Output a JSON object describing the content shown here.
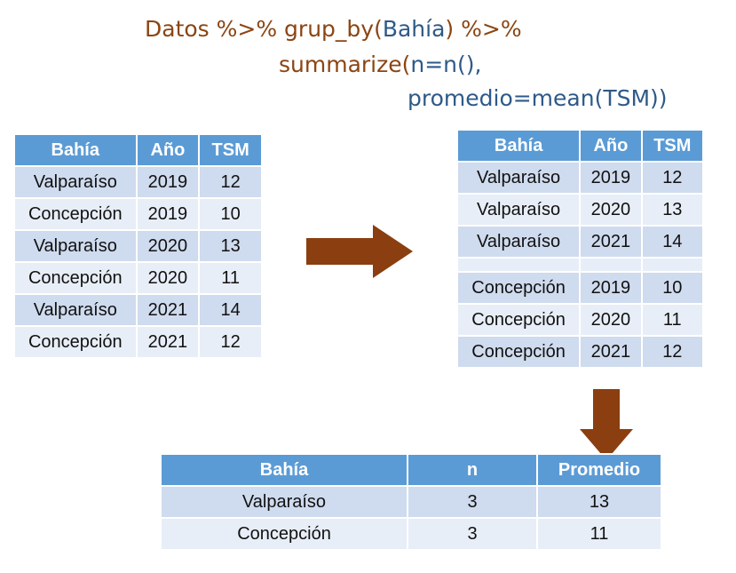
{
  "code": {
    "l1_a": "Datos %>% grup_by(",
    "l1_b": "Bahía",
    "l1_c": ") %>%",
    "l2_a": "summarize(",
    "l2_b": "n=n(),",
    "l3_a": "promedio=mean(TSM))"
  },
  "input_table": {
    "headers": [
      "Bahía",
      "Año",
      "TSM"
    ],
    "rows": [
      [
        "Valparaíso",
        "2019",
        "12"
      ],
      [
        "Concepción",
        "2019",
        "10"
      ],
      [
        "Valparaíso",
        "2020",
        "13"
      ],
      [
        "Concepción",
        "2020",
        "11"
      ],
      [
        "Valparaíso",
        "2021",
        "14"
      ],
      [
        "Concepción",
        "2021",
        "12"
      ]
    ]
  },
  "grouped_table": {
    "headers": [
      "Bahía",
      "Año",
      "TSM"
    ],
    "group1": [
      [
        "Valparaíso",
        "2019",
        "12"
      ],
      [
        "Valparaíso",
        "2020",
        "13"
      ],
      [
        "Valparaíso",
        "2021",
        "14"
      ]
    ],
    "group2": [
      [
        "Concepción",
        "2019",
        "10"
      ],
      [
        "Concepción",
        "2020",
        "11"
      ],
      [
        "Concepción",
        "2021",
        "12"
      ]
    ]
  },
  "summary_table": {
    "headers": [
      "Bahía",
      "n",
      "Promedio"
    ],
    "rows": [
      [
        "Valparaíso",
        "3",
        "13"
      ],
      [
        "Concepción",
        "3",
        "11"
      ]
    ]
  },
  "colors": {
    "header": "#5b9bd5",
    "row_dark": "#cfdbee",
    "row_light": "#e8eef7",
    "arrow": "#8b3e0f",
    "code_keyword": "#8b4513",
    "code_arg": "#2e5a88"
  }
}
